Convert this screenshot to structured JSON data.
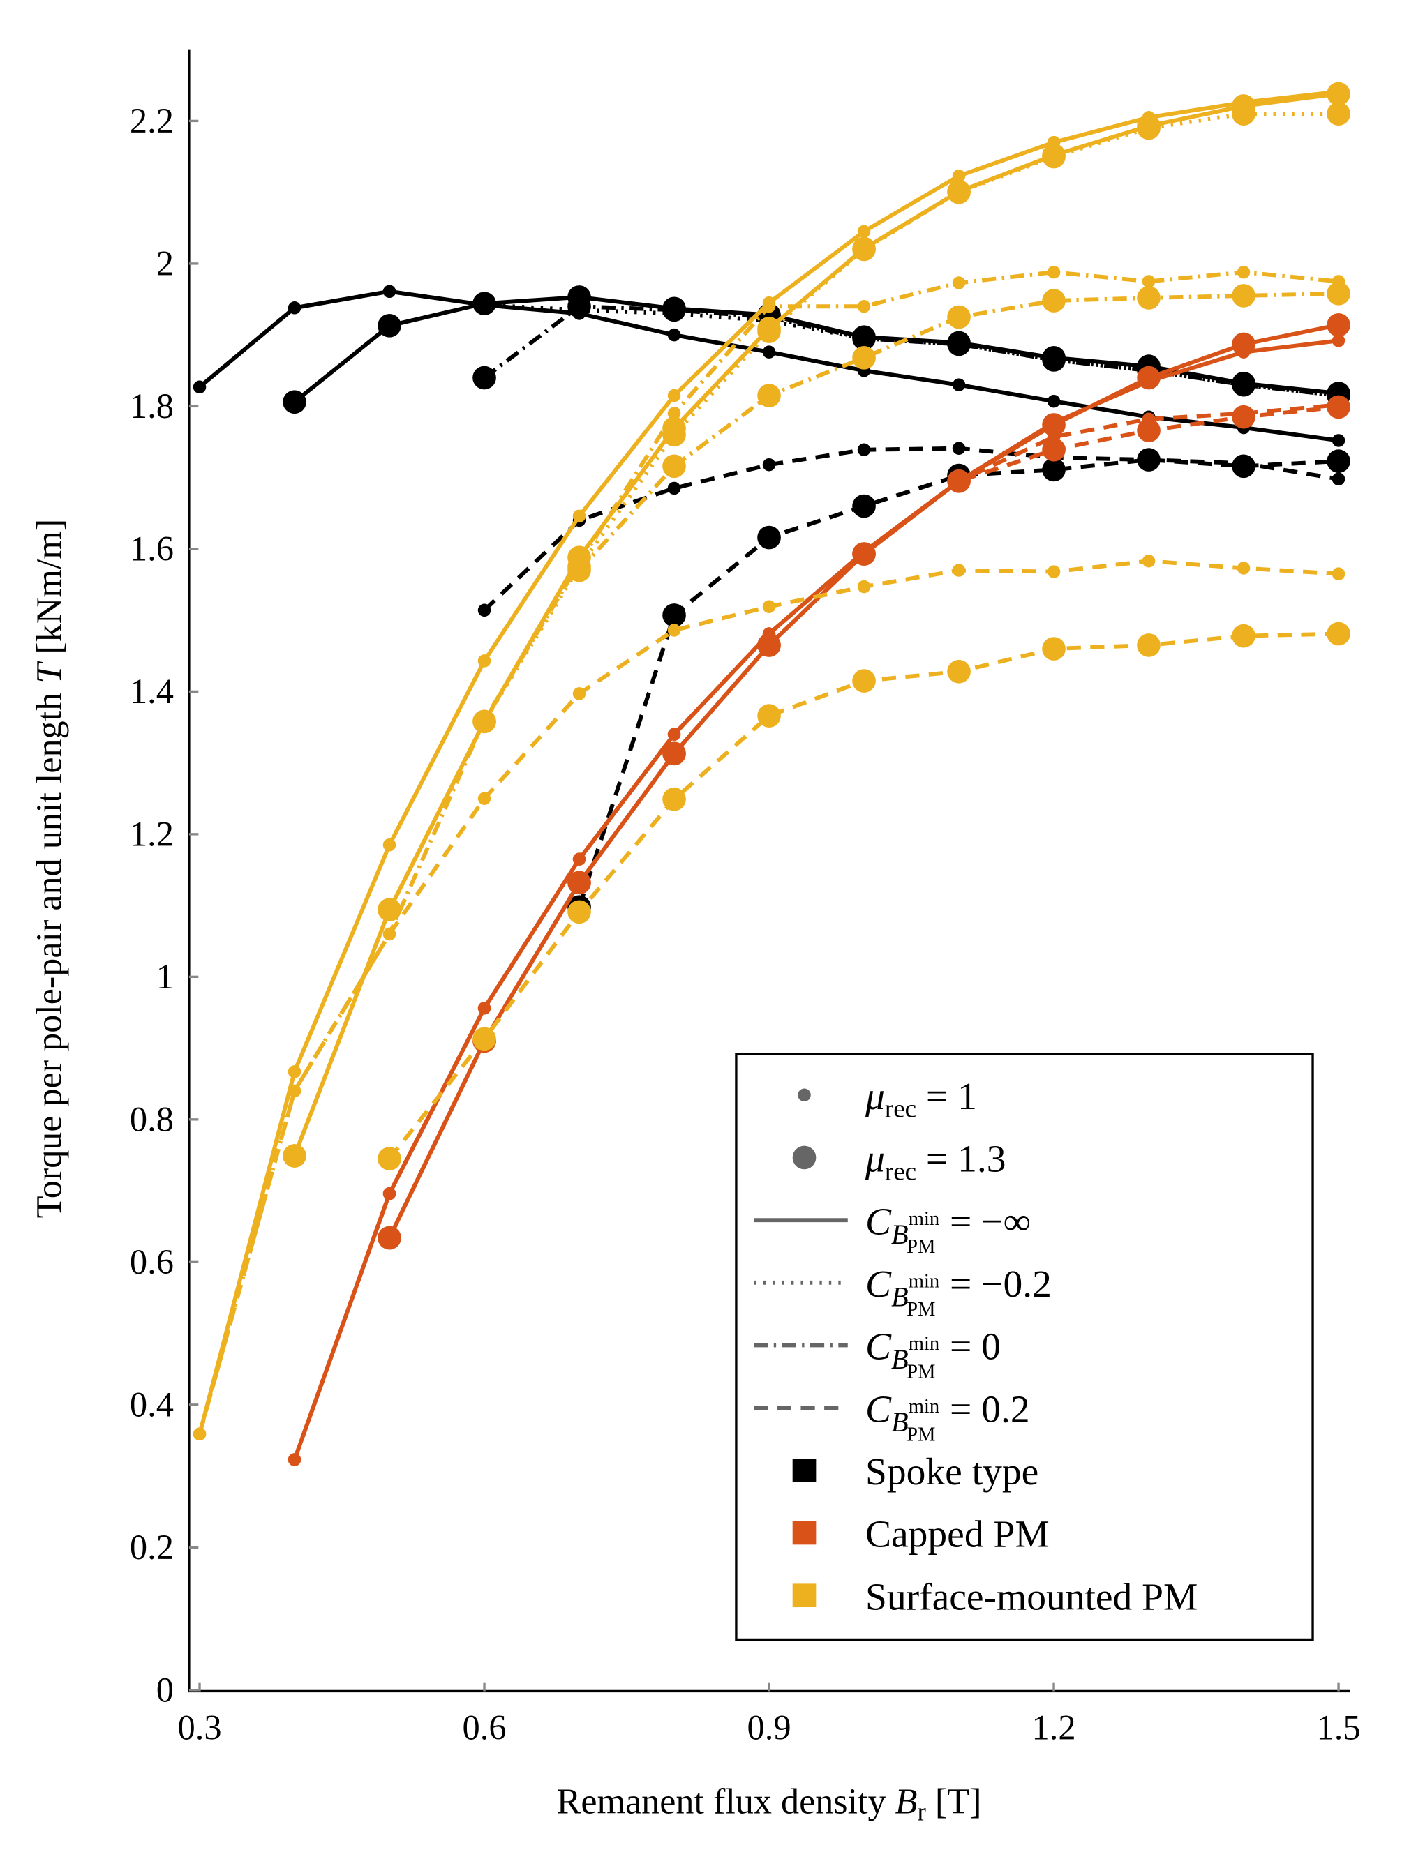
{
  "chart_data": {
    "type": "line",
    "xlabel": {
      "main": "Remanent flux density ",
      "var": "B",
      "sub": "r",
      "unit": " [T]"
    },
    "ylabel": {
      "main": "Torque per pole-pair and unit length ",
      "var": "T",
      "unit": " [kNm/m]"
    },
    "xlim": [
      0.3,
      1.5
    ],
    "ylim": [
      0,
      2.3
    ],
    "grid": false,
    "legend_placement": "bottom-right",
    "xticks": [
      "0.3",
      "0.6",
      "0.9",
      "1.2",
      "1.5"
    ],
    "yticks": [
      "0",
      "0.2",
      "0.4",
      "0.6",
      "0.8",
      "1",
      "1.2",
      "1.4",
      "1.6",
      "1.8",
      "2",
      "2.2"
    ],
    "x": [
      0.3,
      0.4,
      0.5,
      0.6,
      0.7,
      0.8,
      0.9,
      1.0,
      1.1,
      1.2,
      1.3,
      1.4,
      1.5
    ],
    "colors": {
      "spoke": "#000000",
      "capped": "#D95319",
      "surface": "#EDB120",
      "legend_gray": "#666666"
    },
    "series": [
      {
        "name": "Spoke type, C=-inf, mu=1",
        "type": "spoke",
        "style": "solid",
        "mu": 1,
        "values": [
          1.827,
          1.938,
          1.961,
          1.942,
          1.93,
          1.9,
          1.876,
          1.85,
          1.83,
          1.807,
          1.785,
          1.77,
          1.752
        ]
      },
      {
        "name": "Spoke type, C=-0.2, mu=1",
        "type": "spoke",
        "style": "dotted",
        "mu": 1,
        "values": [
          null,
          null,
          null,
          1.942,
          1.935,
          1.93,
          1.92,
          1.895,
          1.887,
          1.865,
          1.85,
          1.83,
          1.815
        ]
      },
      {
        "name": "Spoke type, C=-inf, mu=1.3",
        "type": "spoke",
        "style": "solid",
        "mu": 1.3,
        "values": [
          null,
          1.806,
          1.913,
          1.944,
          1.953,
          1.937,
          1.928,
          1.897,
          1.889,
          1.868,
          1.856,
          1.832,
          1.818
        ]
      },
      {
        "name": "Spoke type, C=0, mu=1.3",
        "type": "spoke",
        "style": "dashdot",
        "mu": 1.3,
        "values": [
          null,
          null,
          null,
          1.84,
          1.94,
          1.935,
          1.925,
          1.895,
          1.887,
          1.865,
          1.85,
          1.83,
          1.815
        ]
      },
      {
        "name": "Spoke type, C=0.2, mu=1",
        "type": "spoke",
        "style": "dashed",
        "mu": 1,
        "values": [
          null,
          null,
          null,
          1.514,
          1.64,
          1.685,
          1.718,
          1.739,
          1.741,
          1.728,
          1.725,
          1.72,
          1.698
        ]
      },
      {
        "name": "Spoke type, C=0.2, mu=1.3",
        "type": "spoke",
        "style": "dashed",
        "mu": 1.3,
        "values": [
          null,
          null,
          null,
          null,
          1.098,
          1.507,
          1.616,
          1.66,
          1.703,
          1.711,
          1.725,
          1.716,
          1.723
        ]
      },
      {
        "name": "Capped PM, C=-inf, mu=1",
        "type": "capped",
        "style": "solid",
        "mu": 1,
        "values": [
          null,
          0.323,
          0.696,
          0.956,
          1.165,
          1.34,
          1.481,
          1.596,
          1.695,
          1.777,
          1.835,
          1.876,
          1.892
        ]
      },
      {
        "name": "Capped PM, C=-inf, mu=1.3",
        "type": "capped",
        "style": "solid",
        "mu": 1.3,
        "values": [
          null,
          null,
          0.634,
          0.91,
          1.132,
          1.313,
          1.465,
          1.593,
          1.695,
          1.774,
          1.84,
          1.887,
          1.914
        ]
      },
      {
        "name": "Capped PM, C=0.2, mu=1",
        "type": "capped",
        "style": "dashed",
        "mu": 1,
        "values": [
          null,
          0.323,
          0.696,
          0.956,
          1.165,
          1.34,
          1.481,
          1.596,
          1.695,
          1.757,
          1.782,
          1.79,
          1.802
        ]
      },
      {
        "name": "Capped PM, C=0.2, mu=1.3",
        "type": "capped",
        "style": "dashed",
        "mu": 1.3,
        "values": [
          null,
          null,
          0.634,
          0.91,
          1.132,
          1.313,
          1.465,
          1.593,
          1.695,
          1.739,
          1.766,
          1.785,
          1.799
        ]
      },
      {
        "name": "Surface-mounted PM, C=-inf, mu=1",
        "type": "surface",
        "style": "solid",
        "mu": 1,
        "values": [
          0.359,
          0.867,
          1.185,
          1.443,
          1.646,
          1.815,
          1.945,
          2.045,
          2.123,
          2.17,
          2.205,
          2.226,
          2.241
        ]
      },
      {
        "name": "Surface-mounted PM, C=-inf, mu=1.3",
        "type": "surface",
        "style": "solid",
        "mu": 1.3,
        "values": [
          null,
          0.749,
          1.094,
          1.358,
          1.588,
          1.769,
          1.909,
          2.021,
          2.101,
          2.152,
          2.193,
          2.221,
          2.238
        ]
      },
      {
        "name": "Surface-mounted PM, C=-0.2, mu=1.3",
        "type": "surface",
        "style": "dotted",
        "mu": 1.3,
        "values": [
          null,
          0.749,
          1.094,
          1.358,
          1.575,
          1.76,
          1.905,
          2.02,
          2.1,
          2.15,
          2.19,
          2.21,
          2.21
        ]
      },
      {
        "name": "Surface-mounted PM, C=0, mu=1",
        "type": "surface",
        "style": "dashdot",
        "mu": 1,
        "values": [
          0.359,
          0.84,
          1.06,
          1.36,
          1.58,
          1.79,
          1.94,
          1.94,
          1.973,
          1.988,
          1.975,
          1.988,
          1.975
        ]
      },
      {
        "name": "Surface-mounted PM, C=0, mu=1.3",
        "type": "surface",
        "style": "dashdot",
        "mu": 1.3,
        "values": [
          null,
          null,
          null,
          null,
          1.57,
          1.716,
          1.815,
          1.868,
          1.925,
          1.948,
          1.952,
          1.955,
          1.958
        ]
      },
      {
        "name": "Surface-mounted PM, C=0.2, mu=1",
        "type": "surface",
        "style": "dashed",
        "mu": 1,
        "values": [
          0.359,
          0.84,
          1.06,
          1.25,
          1.397,
          1.486,
          1.519,
          1.547,
          1.57,
          1.568,
          1.583,
          1.573,
          1.565
        ]
      },
      {
        "name": "Surface-mounted PM, C=0.2, mu=1.3",
        "type": "surface",
        "style": "dashed",
        "mu": 1.3,
        "values": [
          null,
          null,
          0.745,
          0.913,
          1.091,
          1.249,
          1.366,
          1.415,
          1.428,
          1.46,
          1.465,
          1.478,
          1.481
        ]
      }
    ],
    "legend": [
      {
        "kind": "marker-small",
        "main": "μ",
        "sub": "rec",
        "rest": " = 1"
      },
      {
        "kind": "marker-large",
        "main": "μ",
        "sub": "rec",
        "rest": " = 1.3"
      },
      {
        "kind": "solid",
        "main": "C",
        "sub": "B",
        "sup": "min",
        "subsub": "PM",
        "rest": " = −∞"
      },
      {
        "kind": "dotted",
        "main": "C",
        "sub": "B",
        "sup": "min",
        "subsub": "PM",
        "rest": " = −0.2"
      },
      {
        "kind": "dashdot",
        "main": "C",
        "sub": "B",
        "sup": "min",
        "subsub": "PM",
        "rest": " = 0"
      },
      {
        "kind": "dashed",
        "main": "C",
        "sub": "B",
        "sup": "min",
        "subsub": "PM",
        "rest": " = 0.2"
      },
      {
        "kind": "square-spoke",
        "label": "Spoke type"
      },
      {
        "kind": "square-capped",
        "label": "Capped PM"
      },
      {
        "kind": "square-surface",
        "label": "Surface-mounted PM"
      }
    ]
  }
}
